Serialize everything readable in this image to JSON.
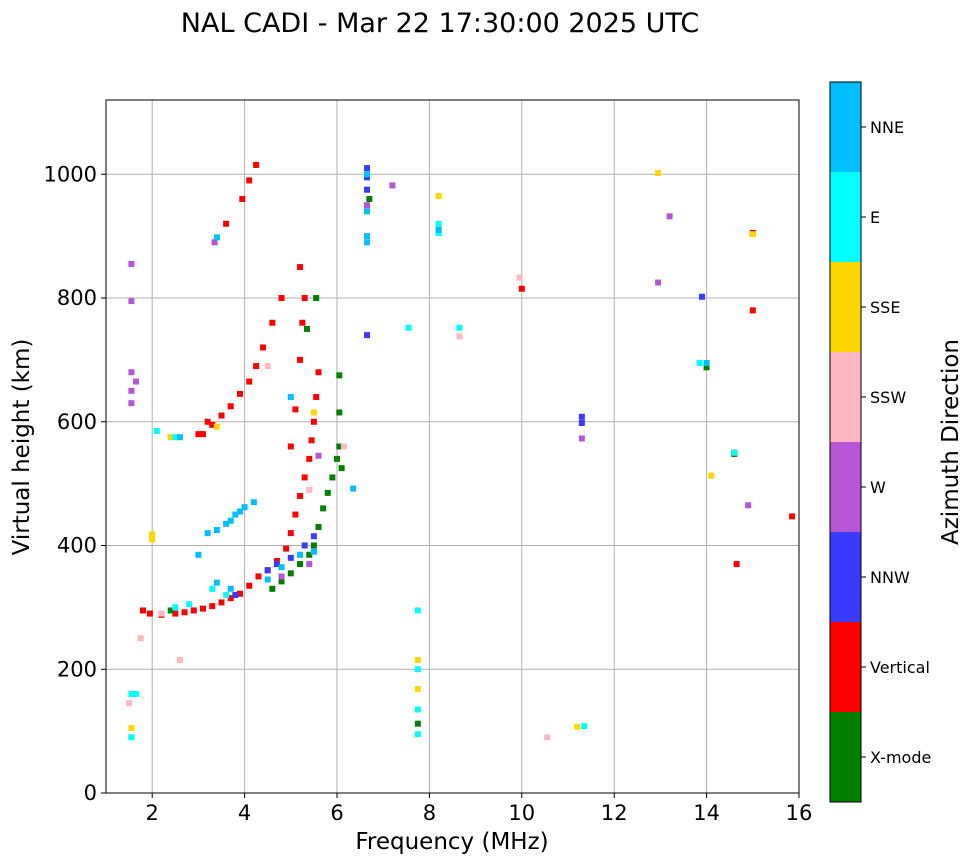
{
  "chart_data": {
    "type": "scatter",
    "title": "NAL CADI - Mar 22 17:30:00 2025 UTC",
    "xlabel": "Frequency (MHz)",
    "ylabel": "Virtual height (km)",
    "xlim": [
      1.0,
      16.0
    ],
    "ylim": [
      0,
      1120
    ],
    "x_ticks": [
      2,
      4,
      6,
      8,
      10,
      12,
      14,
      16
    ],
    "y_ticks": [
      0,
      200,
      400,
      600,
      800,
      1000
    ],
    "grid": true,
    "colorbar": {
      "label": "Azimuth Direction",
      "categories": [
        {
          "name": "X-mode",
          "color": "#008000"
        },
        {
          "name": "Vertical",
          "color": "#ff0000"
        },
        {
          "name": "NNW",
          "color": "#3b3bff"
        },
        {
          "name": "W",
          "color": "#b655d6"
        },
        {
          "name": "SSW",
          "color": "#ffb6c1"
        },
        {
          "name": "SSE",
          "color": "#ffd700"
        },
        {
          "name": "E",
          "color": "#00ffff"
        },
        {
          "name": "NNE",
          "color": "#00bfff"
        }
      ]
    },
    "series": [
      {
        "name": "Vertical",
        "points": [
          [
            1.8,
            295
          ],
          [
            1.95,
            290
          ],
          [
            2.2,
            288
          ],
          [
            2.5,
            290
          ],
          [
            2.7,
            292
          ],
          [
            2.9,
            295
          ],
          [
            3.1,
            298
          ],
          [
            3.3,
            302
          ],
          [
            3.5,
            308
          ],
          [
            3.7,
            315
          ],
          [
            3.9,
            322
          ],
          [
            4.1,
            335
          ],
          [
            4.3,
            350
          ],
          [
            4.5,
            360
          ],
          [
            4.7,
            375
          ],
          [
            4.9,
            395
          ],
          [
            5.0,
            420
          ],
          [
            5.1,
            450
          ],
          [
            5.2,
            480
          ],
          [
            5.3,
            510
          ],
          [
            5.4,
            540
          ],
          [
            5.45,
            570
          ],
          [
            5.5,
            600
          ],
          [
            5.55,
            640
          ],
          [
            5.6,
            680
          ],
          [
            5.0,
            560
          ],
          [
            5.1,
            620
          ],
          [
            5.2,
            700
          ],
          [
            5.25,
            760
          ],
          [
            5.3,
            800
          ],
          [
            5.2,
            850
          ],
          [
            3.1,
            580
          ],
          [
            3.3,
            595
          ],
          [
            3.5,
            610
          ],
          [
            3.7,
            625
          ],
          [
            3.9,
            645
          ],
          [
            4.1,
            665
          ],
          [
            4.25,
            690
          ],
          [
            4.4,
            720
          ],
          [
            4.6,
            760
          ],
          [
            4.8,
            800
          ],
          [
            3.6,
            920
          ],
          [
            3.95,
            960
          ],
          [
            4.1,
            990
          ],
          [
            4.25,
            1015
          ],
          [
            10.0,
            815
          ],
          [
            14.6,
            550
          ],
          [
            14.65,
            370
          ],
          [
            15.0,
            780
          ],
          [
            15.85,
            447
          ],
          [
            15.0,
            905
          ],
          [
            3.2,
            600
          ],
          [
            3.0,
            580
          ]
        ]
      },
      {
        "name": "X-mode",
        "points": [
          [
            4.6,
            330
          ],
          [
            4.8,
            342
          ],
          [
            5.0,
            355
          ],
          [
            5.2,
            370
          ],
          [
            5.4,
            385
          ],
          [
            5.5,
            400
          ],
          [
            5.6,
            430
          ],
          [
            5.7,
            460
          ],
          [
            5.8,
            485
          ],
          [
            5.9,
            510
          ],
          [
            6.0,
            540
          ],
          [
            6.1,
            525
          ],
          [
            6.05,
            560
          ],
          [
            6.05,
            615
          ],
          [
            6.05,
            675
          ],
          [
            5.35,
            750
          ],
          [
            5.55,
            800
          ],
          [
            7.75,
            112
          ],
          [
            14.0,
            688
          ],
          [
            14.6,
            548
          ],
          [
            6.7,
            960
          ],
          [
            2.4,
            295
          ]
        ]
      },
      {
        "name": "NNW",
        "points": [
          [
            4.5,
            360
          ],
          [
            4.7,
            370
          ],
          [
            5.0,
            380
          ],
          [
            5.3,
            400
          ],
          [
            5.5,
            415
          ],
          [
            6.65,
            740
          ],
          [
            6.65,
            1010
          ],
          [
            6.65,
            995
          ],
          [
            6.65,
            975
          ],
          [
            11.3,
            608
          ],
          [
            11.3,
            598
          ],
          [
            13.9,
            802
          ],
          [
            3.8,
            320
          ]
        ]
      },
      {
        "name": "W",
        "points": [
          [
            1.55,
            855
          ],
          [
            1.55,
            795
          ],
          [
            1.55,
            680
          ],
          [
            1.55,
            650
          ],
          [
            1.55,
            630
          ],
          [
            1.65,
            665
          ],
          [
            3.35,
            890
          ],
          [
            6.65,
            950
          ],
          [
            7.2,
            982
          ],
          [
            12.95,
            825
          ],
          [
            13.2,
            932
          ],
          [
            11.3,
            573
          ],
          [
            14.9,
            465
          ],
          [
            4.8,
            350
          ],
          [
            5.4,
            370
          ],
          [
            5.6,
            545
          ]
        ]
      },
      {
        "name": "SSW",
        "points": [
          [
            1.75,
            250
          ],
          [
            2.6,
            215
          ],
          [
            8.65,
            738
          ],
          [
            9.95,
            833
          ],
          [
            10.55,
            90
          ],
          [
            6.15,
            560
          ],
          [
            4.5,
            690
          ],
          [
            5.4,
            490
          ],
          [
            1.5,
            145
          ],
          [
            2.2,
            290
          ]
        ]
      },
      {
        "name": "SSE",
        "points": [
          [
            2.0,
            410
          ],
          [
            2.0,
            418
          ],
          [
            2.4,
            575
          ],
          [
            3.4,
            592
          ],
          [
            7.75,
            215
          ],
          [
            7.75,
            168
          ],
          [
            8.2,
            965
          ],
          [
            8.2,
            918
          ],
          [
            12.95,
            1002
          ],
          [
            14.1,
            513
          ],
          [
            11.2,
            107
          ],
          [
            15.0,
            903
          ],
          [
            5.5,
            615
          ],
          [
            1.55,
            105
          ]
        ]
      },
      {
        "name": "E",
        "points": [
          [
            1.55,
            160
          ],
          [
            1.55,
            90
          ],
          [
            1.65,
            160
          ],
          [
            2.1,
            585
          ],
          [
            2.5,
            575
          ],
          [
            3.3,
            330
          ],
          [
            3.6,
            320
          ],
          [
            7.55,
            752
          ],
          [
            8.65,
            752
          ],
          [
            7.75,
            295
          ],
          [
            7.75,
            200
          ],
          [
            7.75,
            135
          ],
          [
            7.75,
            95
          ],
          [
            8.2,
            905
          ],
          [
            8.2,
            920
          ],
          [
            11.35,
            108
          ],
          [
            13.85,
            695
          ],
          [
            14.6,
            550
          ],
          [
            2.5,
            300
          ],
          [
            2.8,
            305
          ]
        ]
      },
      {
        "name": "NNE",
        "points": [
          [
            3.0,
            385
          ],
          [
            3.2,
            420
          ],
          [
            3.4,
            425
          ],
          [
            3.6,
            435
          ],
          [
            3.8,
            450
          ],
          [
            4.0,
            462
          ],
          [
            4.2,
            470
          ],
          [
            3.7,
            440
          ],
          [
            3.9,
            455
          ],
          [
            3.4,
            340
          ],
          [
            3.7,
            330
          ],
          [
            4.5,
            345
          ],
          [
            4.8,
            365
          ],
          [
            5.2,
            385
          ],
          [
            5.5,
            390
          ],
          [
            5.0,
            640
          ],
          [
            6.65,
            900
          ],
          [
            6.65,
            890
          ],
          [
            6.65,
            940
          ],
          [
            6.65,
            1000
          ],
          [
            6.35,
            492
          ],
          [
            3.4,
            898
          ],
          [
            8.2,
            910
          ],
          [
            14.0,
            695
          ],
          [
            2.6,
            575
          ]
        ]
      }
    ]
  }
}
